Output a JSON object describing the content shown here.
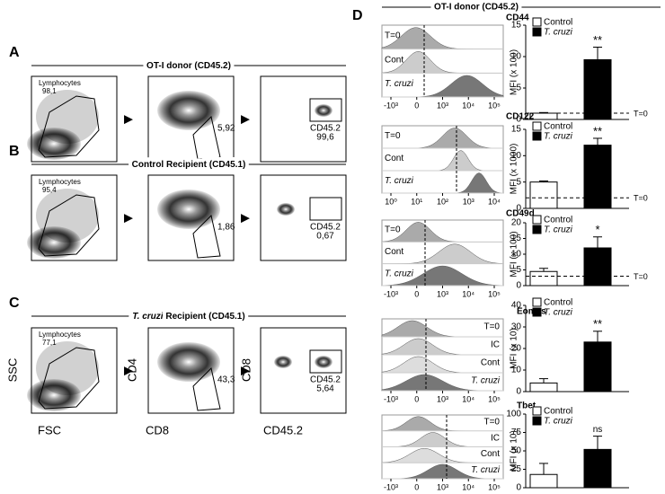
{
  "panels": [
    {
      "letter": "A",
      "title": "OT-I donor (CD45.2)",
      "gates": [
        {
          "name": "Lymphocytes",
          "value": "98,1"
        },
        {
          "value": "5,92"
        },
        {
          "name": "CD45.2",
          "value": "99,6"
        }
      ]
    },
    {
      "letter": "B",
      "title": "Control Recipient (CD45.1)",
      "gates": [
        {
          "name": "Lymphocytes",
          "value": "95,4"
        },
        {
          "value": "1,86"
        },
        {
          "name": "CD45.2",
          "value": "0,67"
        }
      ]
    },
    {
      "letter": "C",
      "title_italic": "T. cruzi",
      "title": "Recipient (CD45.1)",
      "gates": [
        {
          "name": "Lymphocytes",
          "value": "77,1"
        },
        {
          "value": "43,3"
        },
        {
          "name": "CD45.2",
          "value": "5,64"
        }
      ]
    }
  ],
  "axis_labels": [
    "SSC",
    "FSC",
    "CD4",
    "CD8",
    "CD8",
    "CD45.2"
  ],
  "d_panel": {
    "letter": "D",
    "title": "OT-I donor (CD45.2)"
  },
  "histograms": [
    {
      "rows": [
        "T=0",
        "Cont",
        "T. cruzi"
      ],
      "axis": [
        "-10³",
        "0",
        "10³",
        "10⁴",
        "10⁵"
      ]
    },
    {
      "rows": [
        "T=0",
        "Cont",
        "T. cruzi"
      ],
      "axis": [
        "10⁰",
        "10¹",
        "10²",
        "10³",
        "10⁴"
      ]
    },
    {
      "rows": [
        "T=0",
        "Cont",
        "T. cruzi"
      ],
      "axis": [
        "-10³",
        "0",
        "10³",
        "10⁴",
        "10⁵"
      ]
    },
    {
      "rows": [
        "T=0",
        "IC",
        "Cont",
        "T. cruzi"
      ],
      "axis": [
        "-10³",
        "0",
        "10³",
        "10⁴",
        "10⁵"
      ]
    },
    {
      "rows": [
        "T=0",
        "IC",
        "Cont",
        "T. cruzi"
      ],
      "axis": [
        "-10³",
        "0",
        "10³",
        "10⁴",
        "10⁵"
      ]
    }
  ],
  "chart_data": [
    {
      "type": "bar",
      "title": "CD44",
      "y_label": "MFI (x 100)",
      "categories": [
        "Control",
        "T. cruzi"
      ],
      "colors": [
        "#ffffff",
        "#000000"
      ],
      "values": [
        1,
        9.5
      ],
      "errors": [
        0.1,
        2
      ],
      "ylim": [
        0,
        15
      ],
      "yticks": [
        0,
        5,
        10,
        15
      ],
      "reference": {
        "value": 1,
        "label": "T=0"
      },
      "significance": "**"
    },
    {
      "type": "bar",
      "title": "CD122",
      "y_label": "MFI (x 1000)",
      "categories": [
        "Control",
        "T. cruzi"
      ],
      "colors": [
        "#ffffff",
        "#000000"
      ],
      "values": [
        5,
        12
      ],
      "errors": [
        0.2,
        1.3
      ],
      "ylim": [
        0,
        15
      ],
      "yticks": [
        0,
        5,
        10,
        15
      ],
      "reference": {
        "value": 2,
        "label": "T=0"
      },
      "significance": "**"
    },
    {
      "type": "bar",
      "title": "CD49d",
      "y_label": "MFI (x 100)",
      "categories": [
        "Control",
        "T. cruzi"
      ],
      "colors": [
        "#ffffff",
        "#000000"
      ],
      "values": [
        4.5,
        12
      ],
      "errors": [
        1,
        3.5
      ],
      "ylim": [
        0,
        20
      ],
      "yticks": [
        0,
        5,
        10,
        15,
        20
      ],
      "reference": {
        "value": 3,
        "label": "T=0"
      },
      "significance": "*"
    },
    {
      "type": "bar",
      "title": "Eomes",
      "y_label": "MFI (x 10)",
      "categories": [
        "Control",
        "T. cruzi"
      ],
      "colors": [
        "#ffffff",
        "#000000"
      ],
      "values": [
        4,
        23
      ],
      "errors": [
        2,
        5
      ],
      "ylim": [
        0,
        40
      ],
      "yticks": [
        0,
        10,
        20,
        30,
        40
      ],
      "significance": "**"
    },
    {
      "type": "bar",
      "title": "Tbet",
      "y_label": "MFI (x 10)",
      "categories": [
        "Control",
        "T. cruzi"
      ],
      "colors": [
        "#ffffff",
        "#000000"
      ],
      "values": [
        18,
        52
      ],
      "errors": [
        15,
        18
      ],
      "ylim": [
        0,
        100
      ],
      "yticks": [
        0,
        25,
        50,
        75,
        100
      ],
      "significance": "ns"
    }
  ]
}
